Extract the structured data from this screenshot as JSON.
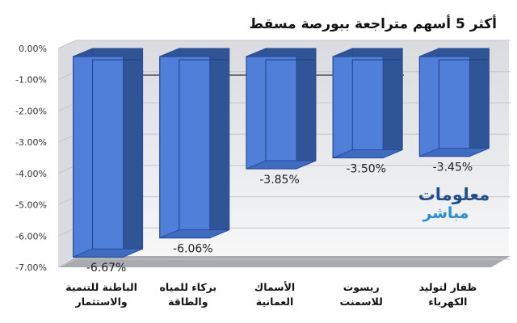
{
  "colors": {
    "bar_face": "#4f7fd8",
    "bar_side": "#2f5597",
    "bar_outline": "#2a4a9a",
    "background_top": "#d9dbdf",
    "background_bottom": "#f7f7f8",
    "floor": "#a9aaad",
    "watermark": "#1f4e8c",
    "watermark_accent": "#2a8fd6"
  },
  "watermark": {
    "line1": "معلومات",
    "line2": "مباشر"
  },
  "chart_data": {
    "type": "bar",
    "title": "أكثر 5 أسهم متراجعة ببورصة مسقط",
    "categories": [
      [
        "الباطنة للتنمية",
        "والاستثمار"
      ],
      [
        "بركاء للمياه",
        "والطاقة"
      ],
      [
        "الأسماك",
        "العمانية"
      ],
      [
        "ريسوت",
        "للاسمنت"
      ],
      [
        "ظفار لتوليد",
        "الكهرباء"
      ]
    ],
    "values": [
      -6.67,
      -6.06,
      -3.85,
      -3.5,
      -3.45
    ],
    "value_labels": [
      "-6.67%",
      "-6.06%",
      "-3.85%",
      "-3.50%",
      "-3.45%"
    ],
    "ylim": [
      -7,
      0
    ],
    "yticks": [
      0,
      -1,
      -2,
      -3,
      -4,
      -5,
      -6,
      -7
    ],
    "ytick_labels": [
      "0.00%",
      "-1.00%",
      "-2.00%",
      "-3.00%",
      "-4.00%",
      "-5.00%",
      "-6.00%",
      "-7.00%"
    ],
    "xlabel": "",
    "ylabel": "",
    "grid": true,
    "legend": "none",
    "style": "3d"
  }
}
